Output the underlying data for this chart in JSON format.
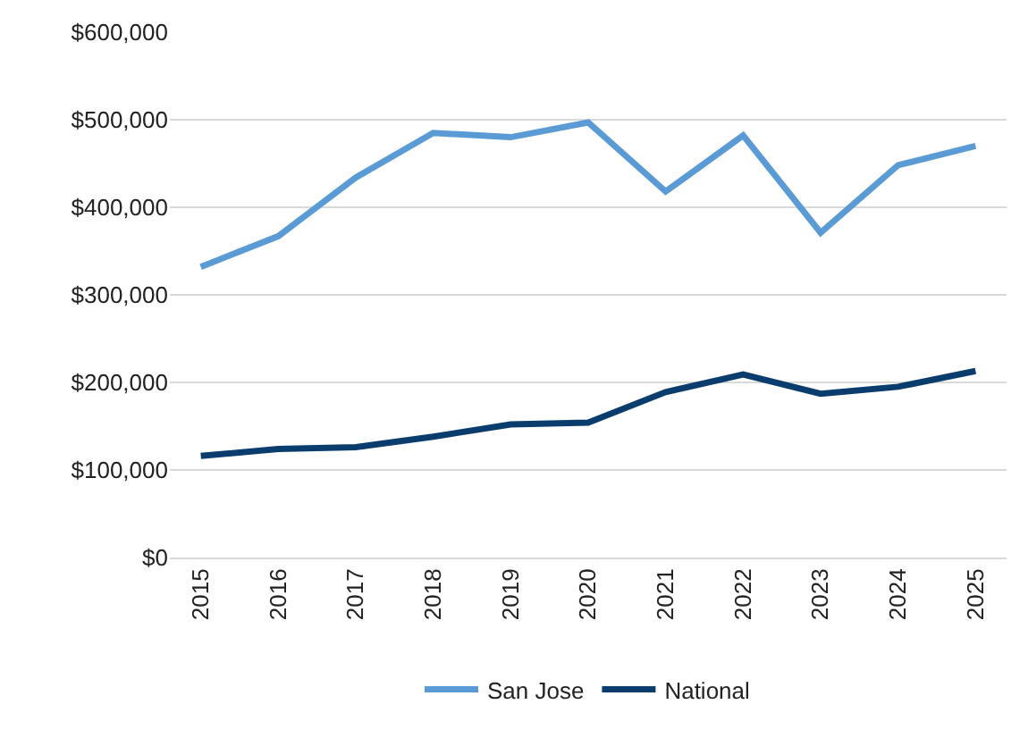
{
  "chart_data": {
    "type": "line",
    "categories": [
      "2015",
      "2016",
      "2017",
      "2018",
      "2019",
      "2020",
      "2021",
      "2022",
      "2023",
      "2024",
      "2025"
    ],
    "series": [
      {
        "name": "San Jose",
        "color": "#5b9bd5",
        "values": [
          332000,
          367000,
          434000,
          485000,
          480000,
          497000,
          418000,
          482000,
          371000,
          448000,
          470000
        ]
      },
      {
        "name": "National",
        "color": "#0b3c6e",
        "values": [
          116000,
          124000,
          126000,
          138000,
          152000,
          154000,
          189000,
          209000,
          187000,
          195000,
          213000
        ]
      }
    ],
    "ylim": [
      0,
      600000
    ],
    "yticks": [
      {
        "value": 0,
        "label": "$0"
      },
      {
        "value": 100000,
        "label": "$100,000"
      },
      {
        "value": 200000,
        "label": "$200,000"
      },
      {
        "value": 300000,
        "label": "$300,000"
      },
      {
        "value": 400000,
        "label": "$400,000"
      },
      {
        "value": 500000,
        "label": "$500,000"
      },
      {
        "value": 600000,
        "label": "$600,000"
      }
    ],
    "grid": "y",
    "legend": "bottom",
    "marker": "none",
    "line_style": "solid"
  }
}
